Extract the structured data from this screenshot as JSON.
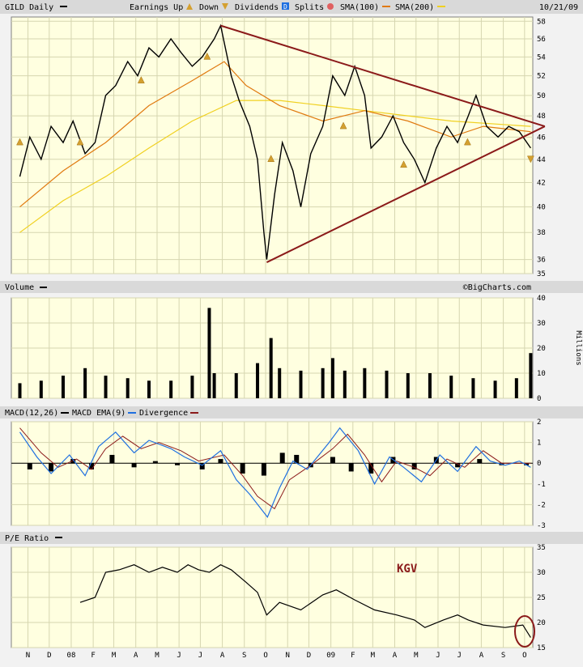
{
  "header": {
    "ticker": "GILD Daily",
    "legend": [
      {
        "label": "Earnings Up",
        "icon": "earnings-up-triangle-icon",
        "color": "#d4a030"
      },
      {
        "label": "Down",
        "icon": "earnings-down-triangle-icon",
        "color": "#d4a030"
      },
      {
        "label": "Dividends",
        "icon": "dividends-d-icon",
        "color": "#1e6fe0"
      },
      {
        "label": "Splits",
        "icon": "splits-circle-icon",
        "color": "#e06060"
      },
      {
        "label": "SMA(100)",
        "icon": "sma100-line-icon",
        "color": "#e07a10"
      },
      {
        "label": "SMA(200)",
        "icon": "sma200-line-icon",
        "color": "#f0d020"
      }
    ],
    "date": "10/21/09"
  },
  "volume_label": "Volume",
  "watermark": "©BigCharts.com",
  "volume_units": "Millions",
  "macd_legend": [
    {
      "label": "MACD(12,26)",
      "color": "#000000"
    },
    {
      "label": "MACD EMA(9)",
      "color": "#1e6fe0"
    },
    {
      "label": "Divergence",
      "color": "#8b1a1a"
    }
  ],
  "pe_label": "P/E Ratio",
  "pe_annotation": "KGV",
  "x_labels": [
    "N",
    "D",
    "08",
    "F",
    "M",
    "A",
    "M",
    "J",
    "J",
    "A",
    "S",
    "O",
    "N",
    "D",
    "09",
    "F",
    "M",
    "A",
    "M",
    "J",
    "J",
    "A",
    "S",
    "O"
  ],
  "colors": {
    "price": "#000000",
    "sma100": "#e07a10",
    "sma200": "#f0d020",
    "trendline": "#8b1a1a",
    "macd_ema": "#1e6fe0",
    "macd_signal": "#8b1a1a",
    "divergence": "#000000",
    "annotation": "#8b1a1a"
  },
  "chart_data": [
    {
      "type": "line",
      "panel": "price",
      "y_ticks": [
        35,
        36,
        38,
        40,
        42,
        44,
        46,
        48,
        50,
        52,
        54,
        56,
        58
      ],
      "ylim": [
        35,
        58.5
      ],
      "y_scale": "log",
      "price": [
        [
          "2007-11-01",
          42.5
        ],
        [
          "2007-11-15",
          46.0
        ],
        [
          "2007-12-01",
          44.0
        ],
        [
          "2007-12-15",
          47.0
        ],
        [
          "2008-01-01",
          45.5
        ],
        [
          "2008-01-15",
          47.5
        ],
        [
          "2008-02-01",
          44.5
        ],
        [
          "2008-02-15",
          45.5
        ],
        [
          "2008-03-01",
          50.0
        ],
        [
          "2008-03-15",
          51.0
        ],
        [
          "2008-04-01",
          53.5
        ],
        [
          "2008-04-15",
          52.0
        ],
        [
          "2008-05-01",
          55.0
        ],
        [
          "2008-05-15",
          54.0
        ],
        [
          "2008-06-01",
          56.0
        ],
        [
          "2008-06-15",
          54.5
        ],
        [
          "2008-07-01",
          53.0
        ],
        [
          "2008-07-15",
          54.0
        ],
        [
          "2008-08-01",
          56.0
        ],
        [
          "2008-08-10",
          57.5
        ],
        [
          "2008-08-25",
          52.0
        ],
        [
          "2008-09-05",
          49.5
        ],
        [
          "2008-09-20",
          47.0
        ],
        [
          "2008-10-01",
          44.0
        ],
        [
          "2008-10-10",
          38.0
        ],
        [
          "2008-10-14",
          36.0
        ],
        [
          "2008-10-25",
          41.0
        ],
        [
          "2008-11-05",
          45.5
        ],
        [
          "2008-11-20",
          43.0
        ],
        [
          "2008-12-01",
          40.0
        ],
        [
          "2008-12-15",
          44.5
        ],
        [
          "2009-01-01",
          47.0
        ],
        [
          "2009-01-15",
          52.0
        ],
        [
          "2009-02-01",
          50.0
        ],
        [
          "2009-02-15",
          53.0
        ],
        [
          "2009-03-01",
          50.0
        ],
        [
          "2009-03-10",
          45.0
        ],
        [
          "2009-03-25",
          46.0
        ],
        [
          "2009-04-10",
          48.0
        ],
        [
          "2009-04-25",
          45.5
        ],
        [
          "2009-05-10",
          44.0
        ],
        [
          "2009-05-25",
          42.0
        ],
        [
          "2009-06-10",
          45.0
        ],
        [
          "2009-06-25",
          47.0
        ],
        [
          "2009-07-10",
          45.5
        ],
        [
          "2009-07-25",
          48.0
        ],
        [
          "2009-08-05",
          50.0
        ],
        [
          "2009-08-20",
          47.0
        ],
        [
          "2009-09-05",
          46.0
        ],
        [
          "2009-09-20",
          47.0
        ],
        [
          "2009-10-05",
          46.5
        ],
        [
          "2009-10-21",
          45.0
        ]
      ],
      "sma100": [
        [
          "2007-11-01",
          40.0
        ],
        [
          "2008-01-01",
          43.0
        ],
        [
          "2008-03-01",
          45.5
        ],
        [
          "2008-05-01",
          49.0
        ],
        [
          "2008-07-01",
          51.5
        ],
        [
          "2008-08-15",
          53.5
        ],
        [
          "2008-09-15",
          51.0
        ],
        [
          "2008-11-01",
          49.0
        ],
        [
          "2009-01-01",
          47.5
        ],
        [
          "2009-03-01",
          48.5
        ],
        [
          "2009-05-01",
          47.5
        ],
        [
          "2009-07-01",
          46.0
        ],
        [
          "2009-08-15",
          47.0
        ],
        [
          "2009-10-21",
          46.5
        ]
      ],
      "sma200": [
        [
          "2007-11-01",
          38.0
        ],
        [
          "2008-01-01",
          40.5
        ],
        [
          "2008-03-01",
          42.5
        ],
        [
          "2008-05-01",
          45.0
        ],
        [
          "2008-07-01",
          47.5
        ],
        [
          "2008-09-01",
          49.5
        ],
        [
          "2008-11-01",
          49.5
        ],
        [
          "2009-01-01",
          49.0
        ],
        [
          "2009-03-01",
          48.5
        ],
        [
          "2009-05-01",
          48.0
        ],
        [
          "2009-07-01",
          47.5
        ],
        [
          "2009-10-21",
          47.0
        ]
      ],
      "trendlines": [
        [
          [
            "2008-08-10",
            57.5
          ],
          [
            "2009-11-10",
            47.0
          ]
        ],
        [
          [
            "2008-10-14",
            35.8
          ],
          [
            "2009-11-10",
            47.0
          ]
        ]
      ],
      "earnings": [
        [
          "2007-11-01",
          45.5,
          "up"
        ],
        [
          "2008-01-25",
          45.5,
          "up"
        ],
        [
          "2008-04-20",
          51.5,
          "up"
        ],
        [
          "2008-07-22",
          54.0,
          "up"
        ],
        [
          "2008-10-20",
          44.0,
          "up"
        ],
        [
          "2009-01-30",
          47.0,
          "up"
        ],
        [
          "2009-04-25",
          43.5,
          "up"
        ],
        [
          "2009-07-24",
          45.5,
          "up"
        ],
        [
          "2009-10-21",
          44.0,
          "down"
        ]
      ]
    },
    {
      "type": "bar",
      "panel": "volume",
      "ylabel": "Millions",
      "y_ticks": [
        0,
        10,
        20,
        30,
        40
      ],
      "ylim": [
        0,
        40
      ],
      "values": [
        [
          "2007-11-01",
          6
        ],
        [
          "2007-12-01",
          7
        ],
        [
          "2008-01-01",
          9
        ],
        [
          "2008-02-01",
          12
        ],
        [
          "2008-03-01",
          9
        ],
        [
          "2008-04-01",
          8
        ],
        [
          "2008-05-01",
          7
        ],
        [
          "2008-06-01",
          7
        ],
        [
          "2008-07-01",
          9
        ],
        [
          "2008-07-25",
          36
        ],
        [
          "2008-08-01",
          10
        ],
        [
          "2008-09-01",
          10
        ],
        [
          "2008-10-01",
          14
        ],
        [
          "2008-10-20",
          24
        ],
        [
          "2008-11-01",
          12
        ],
        [
          "2008-12-01",
          11
        ],
        [
          "2009-01-01",
          12
        ],
        [
          "2009-01-15",
          16
        ],
        [
          "2009-02-01",
          11
        ],
        [
          "2009-03-01",
          12
        ],
        [
          "2009-04-01",
          11
        ],
        [
          "2009-05-01",
          10
        ],
        [
          "2009-06-01",
          10
        ],
        [
          "2009-07-01",
          9
        ],
        [
          "2009-08-01",
          8
        ],
        [
          "2009-09-01",
          7
        ],
        [
          "2009-10-01",
          8
        ],
        [
          "2009-10-21",
          18
        ]
      ]
    },
    {
      "type": "line",
      "panel": "macd",
      "y_ticks": [
        -3,
        -2,
        -1,
        0,
        1,
        2
      ],
      "ylim": [
        -3,
        2
      ],
      "macd": [
        [
          "2007-11-01",
          1.5
        ],
        [
          "2007-11-25",
          0.3
        ],
        [
          "2007-12-15",
          -0.5
        ],
        [
          "2008-01-10",
          0.4
        ],
        [
          "2008-02-01",
          -0.6
        ],
        [
          "2008-02-20",
          0.8
        ],
        [
          "2008-03-15",
          1.5
        ],
        [
          "2008-04-10",
          0.5
        ],
        [
          "2008-05-01",
          1.1
        ],
        [
          "2008-06-01",
          0.7
        ],
        [
          "2008-06-20",
          0.3
        ],
        [
          "2008-07-15",
          -0.1
        ],
        [
          "2008-08-10",
          0.6
        ],
        [
          "2008-09-01",
          -0.8
        ],
        [
          "2008-09-20",
          -1.5
        ],
        [
          "2008-10-15",
          -2.6
        ],
        [
          "2008-11-01",
          -1.2
        ],
        [
          "2008-11-20",
          0.1
        ],
        [
          "2008-12-10",
          -0.3
        ],
        [
          "2009-01-10",
          1.0
        ],
        [
          "2009-01-25",
          1.7
        ],
        [
          "2009-02-20",
          0.6
        ],
        [
          "2009-03-15",
          -1.0
        ],
        [
          "2009-04-05",
          0.3
        ],
        [
          "2009-04-25",
          -0.2
        ],
        [
          "2009-05-20",
          -0.9
        ],
        [
          "2009-06-15",
          0.4
        ],
        [
          "2009-07-10",
          -0.4
        ],
        [
          "2009-08-05",
          0.8
        ],
        [
          "2009-08-25",
          0.1
        ],
        [
          "2009-09-15",
          -0.1
        ],
        [
          "2009-10-05",
          0.1
        ],
        [
          "2009-10-21",
          -0.2
        ]
      ],
      "ema": [
        [
          "2007-11-01",
          1.7
        ],
        [
          "2007-12-01",
          0.5
        ],
        [
          "2007-12-25",
          -0.2
        ],
        [
          "2008-01-20",
          0.2
        ],
        [
          "2008-02-10",
          -0.3
        ],
        [
          "2008-03-01",
          0.7
        ],
        [
          "2008-03-25",
          1.3
        ],
        [
          "2008-04-20",
          0.7
        ],
        [
          "2008-05-15",
          1.0
        ],
        [
          "2008-06-15",
          0.6
        ],
        [
          "2008-07-10",
          0.1
        ],
        [
          "2008-08-15",
          0.4
        ],
        [
          "2008-09-10",
          -0.6
        ],
        [
          "2008-10-01",
          -1.6
        ],
        [
          "2008-10-25",
          -2.2
        ],
        [
          "2008-11-15",
          -0.8
        ],
        [
          "2008-12-15",
          -0.1
        ],
        [
          "2009-01-15",
          0.7
        ],
        [
          "2009-02-05",
          1.4
        ],
        [
          "2009-03-01",
          0.4
        ],
        [
          "2009-03-25",
          -0.9
        ],
        [
          "2009-04-15",
          0.1
        ],
        [
          "2009-05-10",
          -0.2
        ],
        [
          "2009-06-01",
          -0.6
        ],
        [
          "2009-06-25",
          0.2
        ],
        [
          "2009-07-20",
          -0.2
        ],
        [
          "2009-08-15",
          0.6
        ],
        [
          "2009-09-10",
          0.0
        ],
        [
          "2009-10-21",
          0.0
        ]
      ],
      "divergence": [
        [
          "2007-11-15",
          -0.3
        ],
        [
          "2007-12-15",
          -0.4
        ],
        [
          "2008-01-15",
          0.2
        ],
        [
          "2008-02-10",
          -0.3
        ],
        [
          "2008-03-10",
          0.4
        ],
        [
          "2008-04-10",
          -0.2
        ],
        [
          "2008-05-10",
          0.1
        ],
        [
          "2008-06-10",
          -0.1
        ],
        [
          "2008-07-15",
          -0.3
        ],
        [
          "2008-08-10",
          0.2
        ],
        [
          "2008-09-10",
          -0.5
        ],
        [
          "2008-10-10",
          -0.6
        ],
        [
          "2008-11-05",
          0.5
        ],
        [
          "2008-11-25",
          0.4
        ],
        [
          "2008-12-15",
          -0.2
        ],
        [
          "2009-01-15",
          0.3
        ],
        [
          "2009-02-10",
          -0.4
        ],
        [
          "2009-03-10",
          -0.5
        ],
        [
          "2009-04-10",
          0.3
        ],
        [
          "2009-05-10",
          -0.3
        ],
        [
          "2009-06-10",
          0.3
        ],
        [
          "2009-07-10",
          -0.2
        ],
        [
          "2009-08-10",
          0.2
        ],
        [
          "2009-09-10",
          -0.1
        ],
        [
          "2009-10-15",
          -0.1
        ]
      ]
    },
    {
      "type": "line",
      "panel": "pe_ratio",
      "y_ticks": [
        15,
        20,
        25,
        30,
        35
      ],
      "ylim": [
        15,
        35
      ],
      "values": [
        [
          "2008-01-25",
          24.0
        ],
        [
          "2008-02-15",
          25.0
        ],
        [
          "2008-03-01",
          30.0
        ],
        [
          "2008-03-20",
          30.5
        ],
        [
          "2008-04-10",
          31.5
        ],
        [
          "2008-05-01",
          30.0
        ],
        [
          "2008-05-20",
          31.0
        ],
        [
          "2008-06-10",
          30.0
        ],
        [
          "2008-06-25",
          31.5
        ],
        [
          "2008-07-10",
          30.5
        ],
        [
          "2008-07-25",
          30.0
        ],
        [
          "2008-08-10",
          31.5
        ],
        [
          "2008-08-25",
          30.5
        ],
        [
          "2008-09-15",
          28.0
        ],
        [
          "2008-10-01",
          26.0
        ],
        [
          "2008-10-14",
          21.5
        ],
        [
          "2008-11-01",
          24.0
        ],
        [
          "2008-12-01",
          22.5
        ],
        [
          "2009-01-01",
          25.5
        ],
        [
          "2009-01-20",
          26.5
        ],
        [
          "2009-02-15",
          24.5
        ],
        [
          "2009-03-15",
          22.5
        ],
        [
          "2009-04-15",
          21.5
        ],
        [
          "2009-05-10",
          20.5
        ],
        [
          "2009-05-25",
          19.0
        ],
        [
          "2009-06-20",
          20.5
        ],
        [
          "2009-07-10",
          21.5
        ],
        [
          "2009-07-25",
          20.5
        ],
        [
          "2009-08-15",
          19.5
        ],
        [
          "2009-09-15",
          19.0
        ],
        [
          "2009-10-10",
          19.5
        ],
        [
          "2009-10-21",
          17.0
        ]
      ]
    }
  ]
}
